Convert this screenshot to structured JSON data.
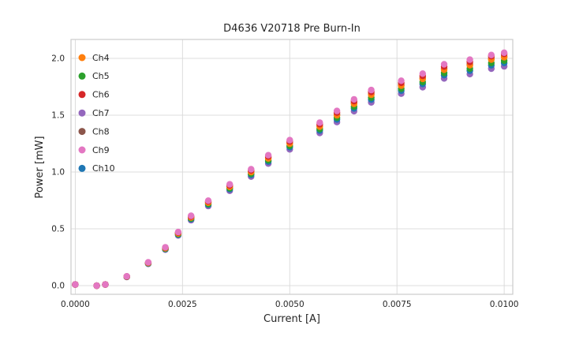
{
  "chart_data": {
    "type": "scatter",
    "title": "D4636 V20718 Pre Burn-In",
    "xlabel": "Current [A]",
    "ylabel": "Power [mW]",
    "xlim": [
      -0.0001,
      0.0102
    ],
    "ylim": [
      -0.076,
      2.167
    ],
    "grid": true,
    "legend_position": "upper left",
    "text_color": "#262626",
    "grid_color": "#dcdcdc",
    "frame_color": "#cccccc",
    "background_color": "#ffffff",
    "xticks": {
      "values": [
        0.0,
        0.0025,
        0.005,
        0.0075,
        0.01
      ],
      "labels": [
        "0.0000",
        "0.0025",
        "0.0050",
        "0.0075",
        "0.0100"
      ]
    },
    "yticks": {
      "values": [
        0.0,
        0.5,
        1.0,
        1.5,
        2.0
      ],
      "labels": [
        "0.0",
        "0.5",
        "1.0",
        "1.5",
        "2.0"
      ]
    },
    "x": [
      0.0,
      0.0005,
      0.0007,
      0.0012,
      0.0017,
      0.0021,
      0.0024,
      0.0027,
      0.0031,
      0.0036,
      0.0041,
      0.0045,
      0.005,
      0.0057,
      0.0061,
      0.0065,
      0.0069,
      0.0076,
      0.0081,
      0.0086,
      0.0092,
      0.0097,
      0.01
    ],
    "series": [
      {
        "name": "Ch4",
        "color": "#ff7f0e",
        "values": [
          0.01,
          0.0,
          0.01,
          0.08,
          0.2,
          0.33,
          0.46,
          0.6,
          0.73,
          0.87,
          1.0,
          1.12,
          1.25,
          1.4,
          1.5,
          1.6,
          1.68,
          1.76,
          1.82,
          1.9,
          1.94,
          1.99,
          2.01
        ]
      },
      {
        "name": "Ch5",
        "color": "#2ca02c",
        "values": [
          0.01,
          0.0,
          0.01,
          0.079,
          0.197,
          0.325,
          0.453,
          0.591,
          0.719,
          0.857,
          0.985,
          1.103,
          1.231,
          1.379,
          1.478,
          1.576,
          1.655,
          1.734,
          1.793,
          1.872,
          1.911,
          1.96,
          1.98
        ]
      },
      {
        "name": "Ch6",
        "color": "#d62728",
        "values": [
          0.01,
          0.0,
          0.01,
          0.081,
          0.203,
          0.335,
          0.467,
          0.609,
          0.741,
          0.883,
          1.015,
          1.137,
          1.269,
          1.421,
          1.523,
          1.624,
          1.705,
          1.786,
          1.847,
          1.929,
          1.969,
          2.02,
          2.04
        ]
      },
      {
        "name": "Ch7",
        "color": "#9467bd",
        "values": [
          0.01,
          0.0,
          0.01,
          0.077,
          0.192,
          0.317,
          0.442,
          0.576,
          0.701,
          0.835,
          0.96,
          1.075,
          1.2,
          1.344,
          1.44,
          1.536,
          1.613,
          1.69,
          1.747,
          1.824,
          1.862,
          1.91,
          1.93
        ]
      },
      {
        "name": "Ch8",
        "color": "#8c564b",
        "values": [
          0.01,
          0.0,
          0.01,
          0.08,
          0.201,
          0.332,
          0.462,
          0.603,
          0.734,
          0.874,
          1.005,
          1.126,
          1.256,
          1.407,
          1.508,
          1.608,
          1.688,
          1.769,
          1.829,
          1.91,
          1.95,
          2.0,
          2.02
        ]
      },
      {
        "name": "Ch9",
        "color": "#e377c2",
        "values": [
          0.01,
          0.0,
          0.01,
          0.082,
          0.205,
          0.338,
          0.472,
          0.615,
          0.748,
          0.892,
          1.025,
          1.148,
          1.281,
          1.435,
          1.538,
          1.64,
          1.722,
          1.804,
          1.866,
          1.948,
          1.989,
          2.03,
          2.05
        ]
      },
      {
        "name": "Ch10",
        "color": "#1f77b4",
        "values": [
          0.01,
          0.0,
          0.01,
          0.078,
          0.195,
          0.322,
          0.449,
          0.585,
          0.712,
          0.848,
          0.975,
          1.092,
          1.219,
          1.365,
          1.463,
          1.56,
          1.638,
          1.716,
          1.775,
          1.853,
          1.892,
          1.94,
          1.96
        ]
      }
    ]
  }
}
